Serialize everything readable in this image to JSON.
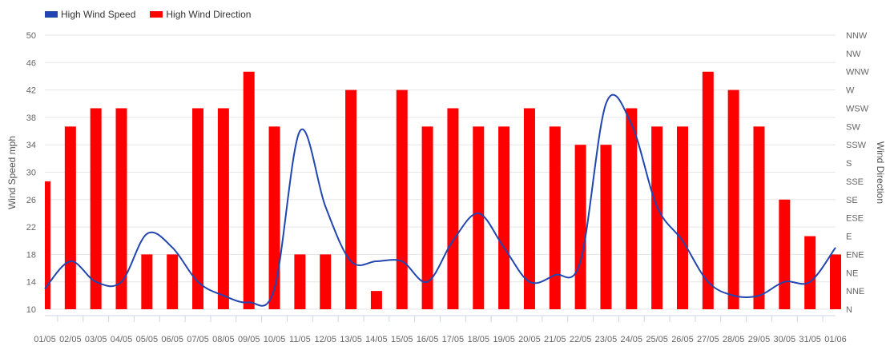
{
  "chart_data": {
    "type": "bar",
    "categories": [
      "01/05",
      "02/05",
      "03/05",
      "04/05",
      "05/05",
      "06/05",
      "07/05",
      "08/05",
      "09/05",
      "10/05",
      "11/05",
      "12/05",
      "13/05",
      "14/05",
      "15/05",
      "16/05",
      "17/05",
      "18/05",
      "19/05",
      "20/05",
      "21/05",
      "22/05",
      "23/05",
      "24/05",
      "25/05",
      "26/05",
      "27/05",
      "28/05",
      "29/05",
      "30/05",
      "31/05",
      "01/06"
    ],
    "series": [
      {
        "name": "High Wind Speed",
        "type": "line",
        "axis": "left",
        "color": "#2146b0",
        "values": [
          13,
          17,
          14,
          14,
          21,
          19,
          14,
          12,
          11,
          13,
          36,
          25,
          17,
          17,
          17,
          14,
          20,
          24,
          19,
          14,
          15,
          17,
          40,
          37,
          25,
          20,
          14,
          12,
          12,
          14,
          14,
          19
        ]
      },
      {
        "name": "High Wind Direction",
        "type": "bar",
        "axis": "right",
        "color": "#ff0000",
        "values": [
          "SSE",
          "SW",
          "WSW",
          "WSW",
          "ENE",
          "ENE",
          "WSW",
          "WSW",
          "WNW",
          "SW",
          "ENE",
          "ENE",
          "W",
          "NNE",
          "W",
          "SW",
          "WSW",
          "SW",
          "SW",
          "WSW",
          "SW",
          "SSW",
          "SSW",
          "WSW",
          "SW",
          "SW",
          "WNW",
          "W",
          "SW",
          "SE",
          "E",
          "ENE"
        ]
      }
    ],
    "ylabel": "Wind Speed mph",
    "y2label": "Wind Direction",
    "ylim": [
      10,
      50
    ],
    "yticks": [
      "50",
      "46",
      "42",
      "38",
      "34",
      "30",
      "26",
      "22",
      "18",
      "14",
      "10"
    ],
    "y2ticks": [
      "NNW",
      "NW",
      "WNW",
      "W",
      "WSW",
      "SW",
      "SSW",
      "S",
      "SSE",
      "SE",
      "ESE",
      "E",
      "ENE",
      "NE",
      "NNE",
      "N"
    ],
    "legend_position": "top-left",
    "grid": true
  }
}
